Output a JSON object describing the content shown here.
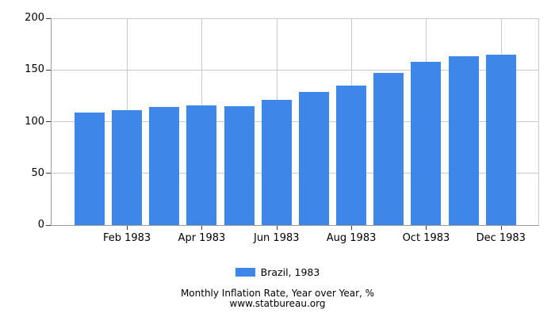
{
  "chart_data": {
    "type": "bar",
    "title": "Monthly Inflation Rate, Year over Year, %",
    "source": "www.statbureau.org",
    "legend_label": "Brazil, 1983",
    "legend_position": "bottom-center",
    "categories": [
      "Jan 1983",
      "Feb 1983",
      "Mar 1983",
      "Apr 1983",
      "May 1983",
      "Jun 1983",
      "Jul 1983",
      "Aug 1983",
      "Sep 1983",
      "Oct 1983",
      "Nov 1983",
      "Dec 1983"
    ],
    "values": [
      109,
      111,
      114,
      116,
      115,
      121,
      129,
      135,
      147.5,
      157.5,
      163,
      165
    ],
    "x_axis_visible_tick_labels": [
      "Feb 1983",
      "Apr 1983",
      "Jun 1983",
      "Aug 1983",
      "Oct 1983",
      "Dec 1983"
    ],
    "x_tick_indexes": [
      1,
      3,
      5,
      7,
      9,
      11
    ],
    "yticks": [
      0,
      50,
      100,
      150,
      200
    ],
    "ylim": [
      0,
      200
    ],
    "xlabel": "",
    "ylabel": "",
    "grid": "horizontal at every ytick; vertical at labeled months; right and top light border",
    "colors": {
      "bar": "#3e86e8",
      "gridline": "#c9c9c9",
      "axis": "#9a9a9a",
      "tick_mark": "#3a3a3a",
      "text": "#000000",
      "background": "#ffffff"
    }
  }
}
